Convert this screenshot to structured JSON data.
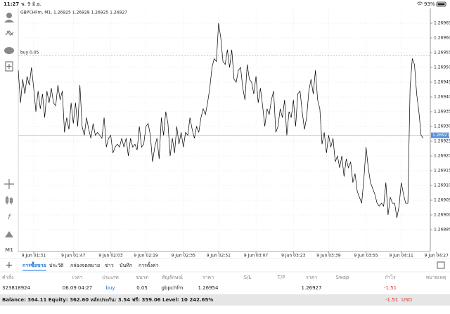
{
  "status_bar": {
    "time": "11:27",
    "date": "พ. 9 มิ.ย.",
    "battery": "93%"
  },
  "sidebar": {
    "timeframe": "M1"
  },
  "chart_data": {
    "type": "line",
    "title": "GBPCHFm, M1, 1.26925 1.26928 1.26925 1.26927",
    "color": "#000000",
    "categories": [
      null,
      null,
      null,
      null,
      null,
      null,
      null,
      "9 Jun 01:31",
      null,
      null,
      null,
      null,
      null,
      null,
      null,
      null,
      null,
      null,
      null,
      null,
      null,
      null,
      null,
      null,
      null,
      "9 Jun 01:47",
      null,
      null,
      null,
      null,
      null,
      null,
      null,
      null,
      null,
      null,
      null,
      null,
      null,
      null,
      null,
      null,
      "9 Jun 02:03",
      null,
      null,
      null,
      null,
      null,
      null,
      null,
      null,
      null,
      null,
      null,
      null,
      null,
      null,
      null,
      "9 Jun 02:19",
      null,
      null,
      null,
      null,
      null,
      null,
      null,
      null,
      null,
      null,
      null,
      null,
      null,
      null,
      null,
      null,
      "9 Jun 02:35",
      null,
      null,
      null,
      null,
      null,
      null,
      null,
      null,
      null,
      null,
      null,
      null,
      null,
      null,
      null,
      "9 Jun 02:51",
      null,
      null,
      null,
      null,
      null,
      null,
      null,
      null,
      null,
      null,
      null,
      null,
      null,
      null,
      null,
      null,
      "9 Jun 03:07",
      null,
      null,
      null,
      null,
      null,
      null,
      null,
      null,
      null,
      null,
      null,
      null,
      null,
      null,
      null,
      null,
      "9 Jun 03:23",
      null,
      null,
      null,
      null,
      null,
      null,
      null,
      null,
      null,
      null,
      null,
      null,
      null,
      null,
      null,
      "9 Jun 03:39",
      null,
      null,
      null,
      null,
      null,
      null,
      null,
      null,
      null,
      null,
      null,
      null,
      null,
      null,
      null,
      null,
      "9 Jun 03:55",
      null,
      null,
      null,
      null,
      null,
      null,
      null,
      null,
      null,
      null,
      null,
      null,
      null,
      null,
      null,
      "9 Jun 04:11",
      null,
      null,
      null,
      null,
      null,
      null,
      null,
      null,
      null,
      null,
      null,
      null,
      null,
      null,
      null,
      "9 Jun 04:27"
    ],
    "values": [
      1.26949,
      1.26938,
      1.26946,
      1.26941,
      1.26947,
      1.26944,
      1.2695,
      1.26943,
      1.26935,
      1.26942,
      1.26936,
      1.26941,
      1.26933,
      1.26942,
      1.26938,
      1.26943,
      1.26938,
      1.26937,
      1.26944,
      1.26939,
      1.26942,
      1.26928,
      1.26933,
      1.26929,
      1.26938,
      1.26931,
      1.26938,
      1.2693,
      1.26944,
      1.2693,
      1.26927,
      1.26933,
      1.26929,
      1.26926,
      1.26931,
      1.26927,
      1.26928,
      1.26927,
      1.26926,
      1.26933,
      1.26923,
      1.26926,
      1.26927,
      1.26921,
      1.26923,
      1.26924,
      1.26923,
      1.26926,
      1.26923,
      1.26926,
      1.2692,
      1.26926,
      1.26923,
      1.26924,
      1.26922,
      1.2693,
      1.26923,
      1.26924,
      1.2693,
      1.26931,
      1.26927,
      1.26918,
      1.26923,
      1.26926,
      1.26919,
      1.26933,
      1.26927,
      1.26935,
      1.26931,
      1.2692,
      1.26926,
      1.26921,
      1.2693,
      1.26924,
      1.26928,
      1.26923,
      1.26928,
      1.26927,
      1.26933,
      1.26929,
      1.26926,
      1.2693,
      1.26928,
      1.26933,
      1.26936,
      1.26934,
      1.26938,
      1.26943,
      1.2695,
      1.26953,
      1.26952,
      1.26965,
      1.2696,
      1.26952,
      1.26951,
      1.26956,
      1.2695,
      1.26956,
      1.26946,
      1.26945,
      1.26949,
      1.2695,
      1.26943,
      1.26939,
      1.26951,
      1.26946,
      1.26945,
      1.26941,
      1.26947,
      1.26938,
      1.26943,
      1.26937,
      1.2693,
      1.26936,
      1.26934,
      1.26939,
      1.26942,
      1.26928,
      1.2693,
      1.26936,
      1.26933,
      1.26939,
      1.26927,
      1.26935,
      1.26933,
      1.26939,
      1.2693,
      1.26941,
      1.26942,
      1.26935,
      1.26929,
      1.26933,
      1.26942,
      1.26946,
      1.26941,
      1.26949,
      1.26939,
      1.26936,
      1.26924,
      1.26928,
      1.26921,
      1.26927,
      1.26923,
      1.26926,
      1.26918,
      1.2692,
      1.26916,
      1.2692,
      1.26913,
      1.26919,
      1.26916,
      1.26918,
      1.26911,
      1.26914,
      1.26908,
      1.26906,
      1.26904,
      1.26912,
      1.26923,
      1.26916,
      1.26911,
      1.26909,
      1.26907,
      1.26904,
      1.26903,
      1.26904,
      1.26903,
      1.26911,
      1.269,
      1.26906,
      1.26904,
      1.26904,
      1.26899,
      1.26903,
      1.26911,
      1.26907,
      1.26904,
      1.26904,
      1.26943,
      1.26953,
      1.26951,
      1.26941,
      1.26935,
      1.26927,
      1.26926,
      null,
      null,
      null,
      null,
      null,
      null
    ],
    "ylim": [
      1.2689,
      1.2697
    ],
    "yticks": [
      1.26895,
      {
        "value": 1.269,
        "label": "1.26900"
      },
      1.26905,
      {
        "value": 1.2691,
        "label": "1.26910"
      },
      1.26915,
      {
        "value": 1.2692,
        "label": "1.26920"
      },
      1.26925,
      {
        "value": 1.2693,
        "label": "1.26930"
      },
      1.26935,
      {
        "value": 1.2694,
        "label": "1.26940"
      },
      1.26945,
      {
        "value": 1.2695,
        "label": "1.26950"
      },
      1.26955,
      {
        "value": 1.2696,
        "label": "1.26960"
      },
      1.26965
    ],
    "grid": true,
    "order_line": {
      "label": "buy 0.05",
      "value": 1.26954
    },
    "current_price": 1.26927
  },
  "tabs": [
    "การซื้อขาย",
    "ประวัติ",
    "กล่องจดหมาย",
    "ข่าว",
    "บันทึก",
    "การตั้งค่า"
  ],
  "table": {
    "header": [
      "คำสั่ง",
      "เวลา",
      "ประเภท",
      "ขนาด",
      "สัญลักษณ์",
      "ราคา",
      "S/L",
      "T/P",
      "ราคา",
      "Swap",
      "กำไร",
      "หมายเหตุ"
    ],
    "rows": [
      [
        "323818924",
        "06.09 04:27",
        "buy",
        "0.05",
        "gbpchfm",
        "1.26954",
        null,
        null,
        "1.26927",
        null,
        "-1.51",
        null
      ]
    ]
  },
  "footer": {
    "summary": "Balance: 364.11 Equity: 362.60 หลักประกัน: 3.54 ฟรี: 359.06 Level: 10 242.65%",
    "profit": "-1.51",
    "currency": "USD"
  }
}
